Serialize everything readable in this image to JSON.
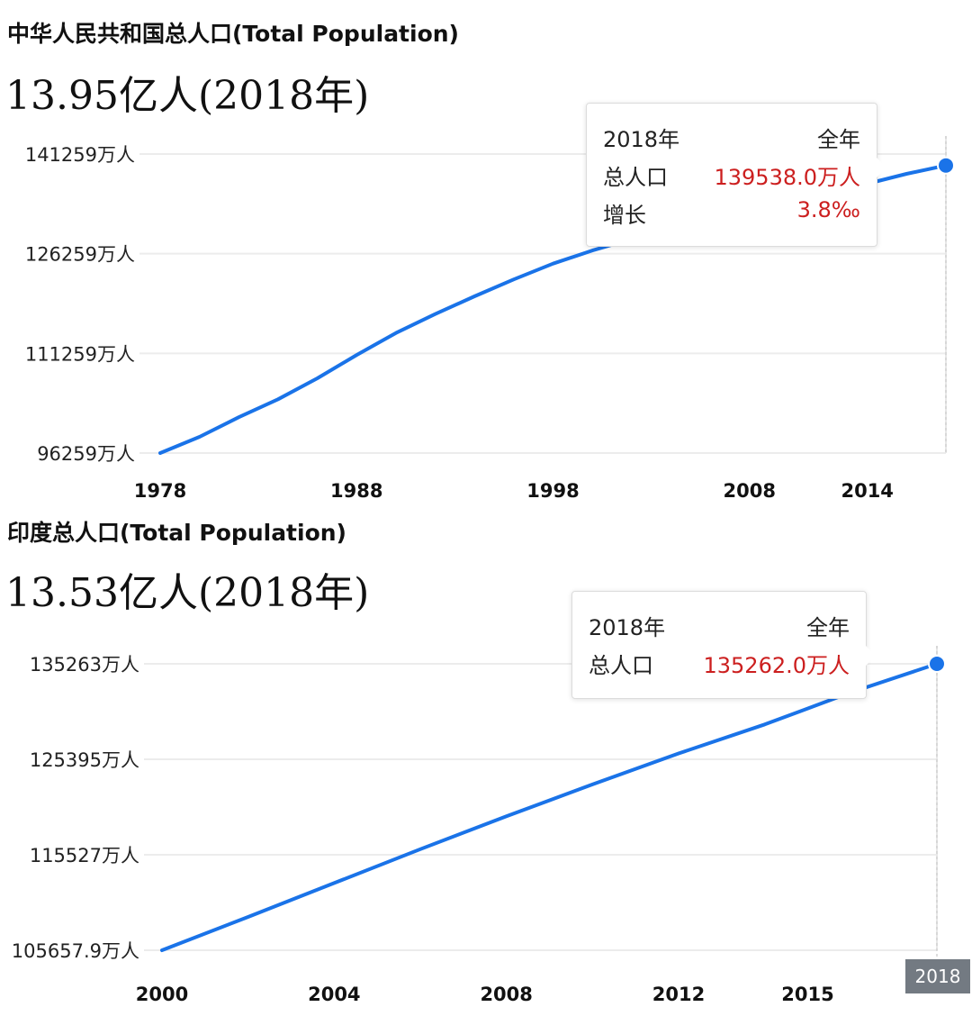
{
  "china": {
    "title": "中华人民共和国总人口(Total Population)",
    "headline": "13.95亿人(2018年)",
    "tooltip": {
      "year": "2018年",
      "period": "全年",
      "pop_label": "总人口",
      "pop_value": "139538.0万人",
      "growth_label": "增长",
      "growth_value": "3.8‰"
    }
  },
  "india": {
    "title": "印度总人口(Total Population)",
    "headline": "13.53亿人(2018年)",
    "tooltip": {
      "year": "2018年",
      "period": "全年",
      "pop_label": "总人口",
      "pop_value": "135262.0万人"
    },
    "highlight_year_label": "2018"
  },
  "chart_data": [
    {
      "type": "line",
      "title": "中华人民共和国总人口(Total Population)",
      "unit": "万人",
      "color": "#1a73e8",
      "yticks": [
        "141259万人",
        "126259万人",
        "111259万人",
        "96259万人"
      ],
      "ytick_values": [
        141259,
        126259,
        111259,
        96259
      ],
      "xticks": [
        "1978",
        "1988",
        "1998",
        "2008",
        "2014"
      ],
      "ylim": [
        96259,
        141259
      ],
      "xlim": [
        1978,
        2018
      ],
      "x": [
        1978,
        1980,
        1982,
        1984,
        1986,
        1988,
        1990,
        1992,
        1994,
        1996,
        1998,
        2000,
        2002,
        2004,
        2006,
        2008,
        2010,
        2012,
        2014,
        2016,
        2018
      ],
      "values": [
        96259,
        98705,
        101654,
        104357,
        107507,
        111026,
        114333,
        117171,
        119850,
        122389,
        124761,
        126743,
        128453,
        129988,
        131448,
        132802,
        134091,
        135404,
        136782,
        138271,
        139538
      ]
    },
    {
      "type": "line",
      "title": "印度总人口(Total Population)",
      "unit": "万人",
      "color": "#1a73e8",
      "yticks": [
        "135263万人",
        "125395万人",
        "115527万人",
        "105657.9万人"
      ],
      "ytick_values": [
        135263,
        125395,
        115527,
        105657.9
      ],
      "xticks": [
        "2000",
        "2004",
        "2008",
        "2012",
        "2015"
      ],
      "ylim": [
        105657.9,
        135263
      ],
      "xlim": [
        2000,
        2018
      ],
      "x": [
        2000,
        2002,
        2004,
        2006,
        2008,
        2010,
        2012,
        2014,
        2016,
        2018
      ],
      "values": [
        105657.9,
        109100,
        112600,
        116100,
        119500,
        122800,
        126000,
        129000,
        132300,
        135262
      ]
    }
  ]
}
